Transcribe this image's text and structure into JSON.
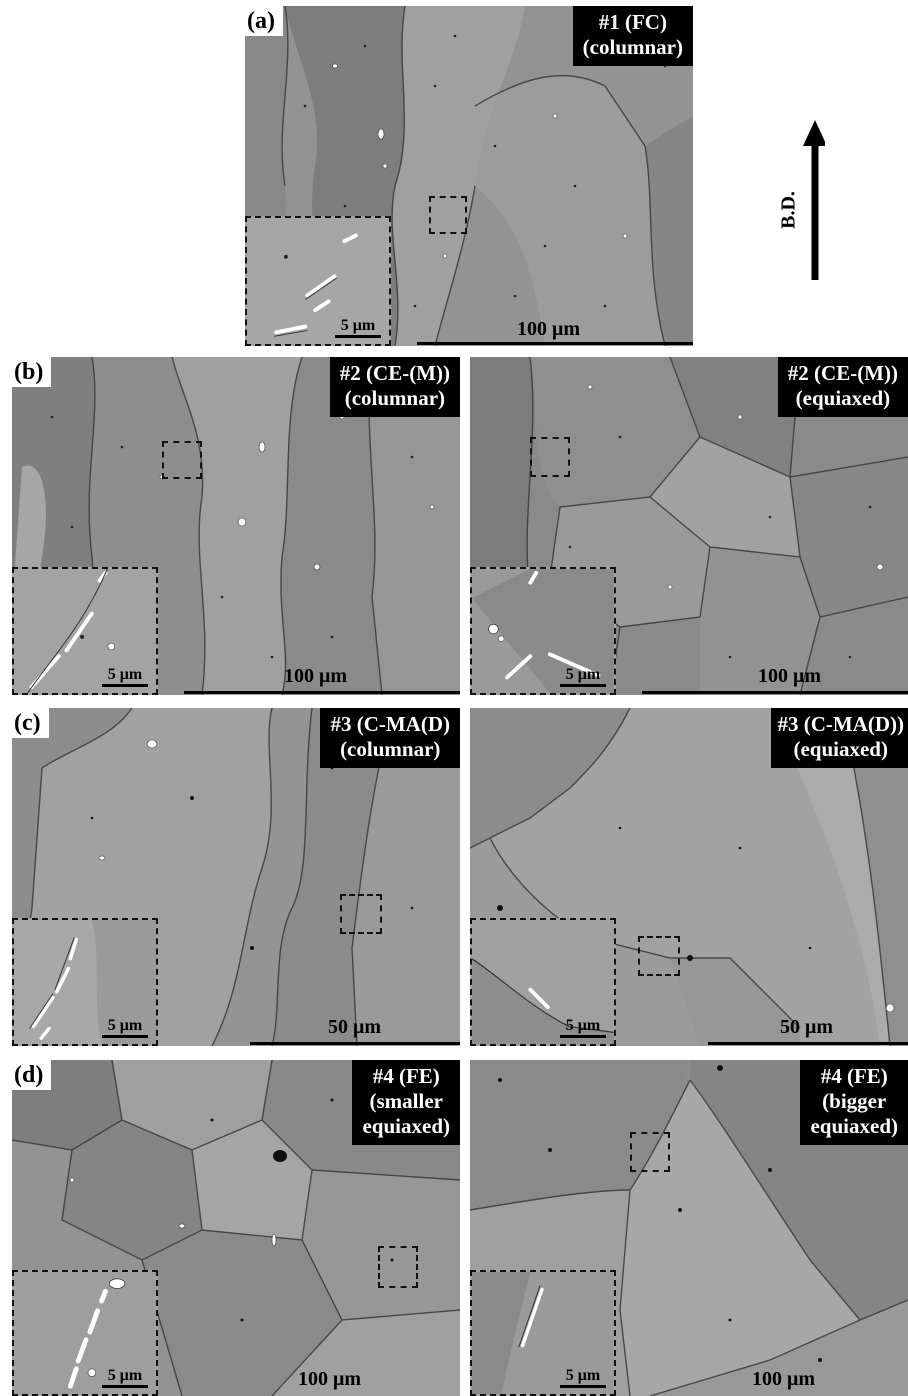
{
  "build_direction": {
    "label": "B.D."
  },
  "panels": [
    {
      "letter": "(a)",
      "label_line1": "#1 (FC)",
      "label_line2": "(columnar)",
      "label_line3": "",
      "scale": "100 μm",
      "inset_scale": "5 μm"
    },
    {
      "letter": "(b)",
      "label_line1": "#2 (CE-(M))",
      "label_line2": "(columnar)",
      "label_line3": "",
      "scale": "100 μm",
      "inset_scale": "5 μm"
    },
    {
      "letter": "",
      "label_line1": "#2 (CE-(M))",
      "label_line2": "(equiaxed)",
      "label_line3": "",
      "scale": "100 μm",
      "inset_scale": "5 μm"
    },
    {
      "letter": "(c)",
      "label_line1": "#3 (C-MA(D)",
      "label_line2": "(columnar)",
      "label_line3": "",
      "scale": "50 μm",
      "inset_scale": "5 μm"
    },
    {
      "letter": "",
      "label_line1": "#3 (C-MA(D))",
      "label_line2": "(equiaxed)",
      "label_line3": "",
      "scale": "50 μm",
      "inset_scale": "5 μm"
    },
    {
      "letter": "(d)",
      "label_line1": "#4 (FE)",
      "label_line2": "(smaller",
      "label_line3": "equiaxed)",
      "scale": "100 μm",
      "inset_scale": "5 μm"
    },
    {
      "letter": "",
      "label_line1": "#4 (FE)",
      "label_line2": "(bigger",
      "label_line3": "equiaxed)",
      "scale": "100 μm",
      "inset_scale": "5 μm"
    }
  ]
}
